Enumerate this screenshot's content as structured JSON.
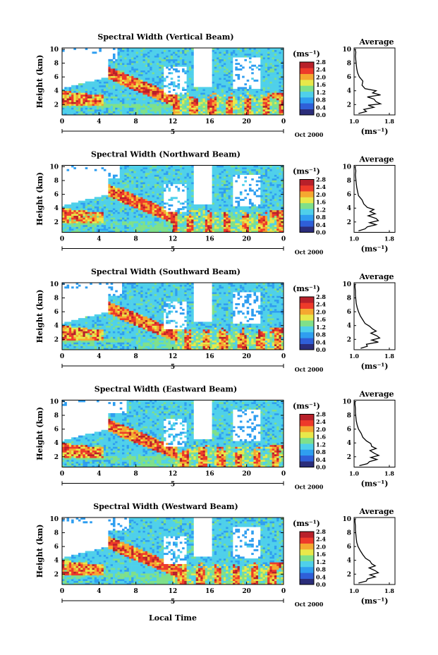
{
  "chart_data": {
    "type": "heatmap",
    "shared": {
      "x_ticks": [
        "0",
        "4",
        "8",
        "12",
        "16",
        "20",
        "0"
      ],
      "y_ticks": [
        "2",
        "4",
        "6",
        "8",
        "10"
      ],
      "ylabel": "Height (km)",
      "xlabel": "Local Time",
      "date_day": "5",
      "date_month_year": "Oct 2000",
      "colorbar_unit": "(ms⁻¹)",
      "colorbar_ticks": [
        "2.8",
        "2.4",
        "2.0",
        "1.6",
        "1.2",
        "0.8",
        "0.4",
        "0.0"
      ],
      "colorbar_range": [
        0.0,
        2.8
      ],
      "profile_title": "Average",
      "profile_x_ticks": [
        "1.0",
        "1.8"
      ],
      "profile_xlabel": "(ms⁻¹)",
      "profile_y_ticks": [
        "2",
        "4",
        "6",
        "8",
        "10"
      ],
      "xlim_hours": [
        0,
        24
      ],
      "ylim_km": [
        0.5,
        10.2
      ],
      "colors": [
        "#2b2d7a",
        "#2f5fd8",
        "#2f9ef0",
        "#4fd0ea",
        "#7fe08a",
        "#e8e84a",
        "#f5a830",
        "#ee3a2a",
        "#b8202a"
      ]
    },
    "panels": [
      {
        "title": "Spectral Width (Vertical Beam)",
        "profile": [
          [
            1.1,
            0.7
          ],
          [
            1.28,
            1.0
          ],
          [
            1.22,
            1.3
          ],
          [
            1.45,
            1.6
          ],
          [
            1.32,
            1.9
          ],
          [
            1.6,
            2.1
          ],
          [
            1.5,
            2.4
          ],
          [
            1.45,
            2.8
          ],
          [
            1.3,
            3.1
          ],
          [
            1.6,
            3.4
          ],
          [
            1.42,
            3.7
          ],
          [
            1.5,
            4.0
          ],
          [
            1.25,
            4.3
          ],
          [
            1.18,
            4.8
          ],
          [
            1.2,
            5.4
          ],
          [
            1.12,
            6.0
          ],
          [
            1.08,
            6.6
          ],
          [
            1.06,
            7.2
          ],
          [
            1.05,
            7.8
          ],
          [
            1.04,
            8.4
          ],
          [
            1.03,
            9.0
          ],
          [
            1.04,
            9.6
          ],
          [
            1.02,
            10.0
          ]
        ]
      },
      {
        "title": "Spectral Width (Northward Beam)",
        "profile": [
          [
            1.1,
            0.7
          ],
          [
            1.25,
            1.0
          ],
          [
            1.3,
            1.3
          ],
          [
            1.5,
            1.6
          ],
          [
            1.35,
            1.9
          ],
          [
            1.55,
            2.2
          ],
          [
            1.5,
            2.5
          ],
          [
            1.32,
            2.9
          ],
          [
            1.48,
            3.2
          ],
          [
            1.36,
            3.5
          ],
          [
            1.45,
            3.8
          ],
          [
            1.3,
            4.1
          ],
          [
            1.22,
            4.6
          ],
          [
            1.18,
            5.2
          ],
          [
            1.1,
            5.8
          ],
          [
            1.08,
            6.4
          ],
          [
            1.06,
            7.0
          ],
          [
            1.05,
            7.6
          ],
          [
            1.04,
            8.2
          ],
          [
            1.03,
            8.8
          ],
          [
            1.04,
            9.4
          ],
          [
            1.02,
            10.0
          ]
        ]
      },
      {
        "title": "Spectral Width (Southward Beam)",
        "profile": [
          [
            1.15,
            0.7
          ],
          [
            1.3,
            1.0
          ],
          [
            1.28,
            1.3
          ],
          [
            1.55,
            1.6
          ],
          [
            1.4,
            1.9
          ],
          [
            1.58,
            2.2
          ],
          [
            1.52,
            2.5
          ],
          [
            1.38,
            2.9
          ],
          [
            1.5,
            3.2
          ],
          [
            1.42,
            3.5
          ],
          [
            1.35,
            3.9
          ],
          [
            1.25,
            4.3
          ],
          [
            1.2,
            4.8
          ],
          [
            1.14,
            5.4
          ],
          [
            1.1,
            6.0
          ],
          [
            1.07,
            6.6
          ],
          [
            1.05,
            7.2
          ],
          [
            1.04,
            7.8
          ],
          [
            1.03,
            8.4
          ],
          [
            1.03,
            9.0
          ],
          [
            1.02,
            9.6
          ],
          [
            1.02,
            10.0
          ]
        ]
      },
      {
        "title": "Spectral Width (Eastward Beam)",
        "profile": [
          [
            1.12,
            0.7
          ],
          [
            1.3,
            1.0
          ],
          [
            1.35,
            1.3
          ],
          [
            1.52,
            1.6
          ],
          [
            1.38,
            1.9
          ],
          [
            1.56,
            2.2
          ],
          [
            1.46,
            2.5
          ],
          [
            1.36,
            2.9
          ],
          [
            1.5,
            3.2
          ],
          [
            1.4,
            3.5
          ],
          [
            1.38,
            3.9
          ],
          [
            1.28,
            4.3
          ],
          [
            1.2,
            4.8
          ],
          [
            1.16,
            5.4
          ],
          [
            1.1,
            6.0
          ],
          [
            1.07,
            6.6
          ],
          [
            1.05,
            7.2
          ],
          [
            1.04,
            7.8
          ],
          [
            1.03,
            8.4
          ],
          [
            1.03,
            9.0
          ],
          [
            1.02,
            9.6
          ],
          [
            1.02,
            10.0
          ]
        ]
      },
      {
        "title": "Spectral Width (Westward Beam)",
        "profile": [
          [
            1.1,
            0.7
          ],
          [
            1.28,
            1.0
          ],
          [
            1.3,
            1.3
          ],
          [
            1.48,
            1.6
          ],
          [
            1.36,
            1.9
          ],
          [
            1.55,
            2.2
          ],
          [
            1.48,
            2.5
          ],
          [
            1.34,
            2.9
          ],
          [
            1.48,
            3.2
          ],
          [
            1.4,
            3.5
          ],
          [
            1.36,
            3.9
          ],
          [
            1.26,
            4.3
          ],
          [
            1.2,
            4.8
          ],
          [
            1.14,
            5.4
          ],
          [
            1.09,
            6.0
          ],
          [
            1.06,
            6.6
          ],
          [
            1.05,
            7.2
          ],
          [
            1.04,
            7.8
          ],
          [
            1.03,
            8.4
          ],
          [
            1.03,
            9.0
          ],
          [
            1.02,
            9.6
          ],
          [
            1.02,
            10.0
          ]
        ]
      }
    ]
  }
}
